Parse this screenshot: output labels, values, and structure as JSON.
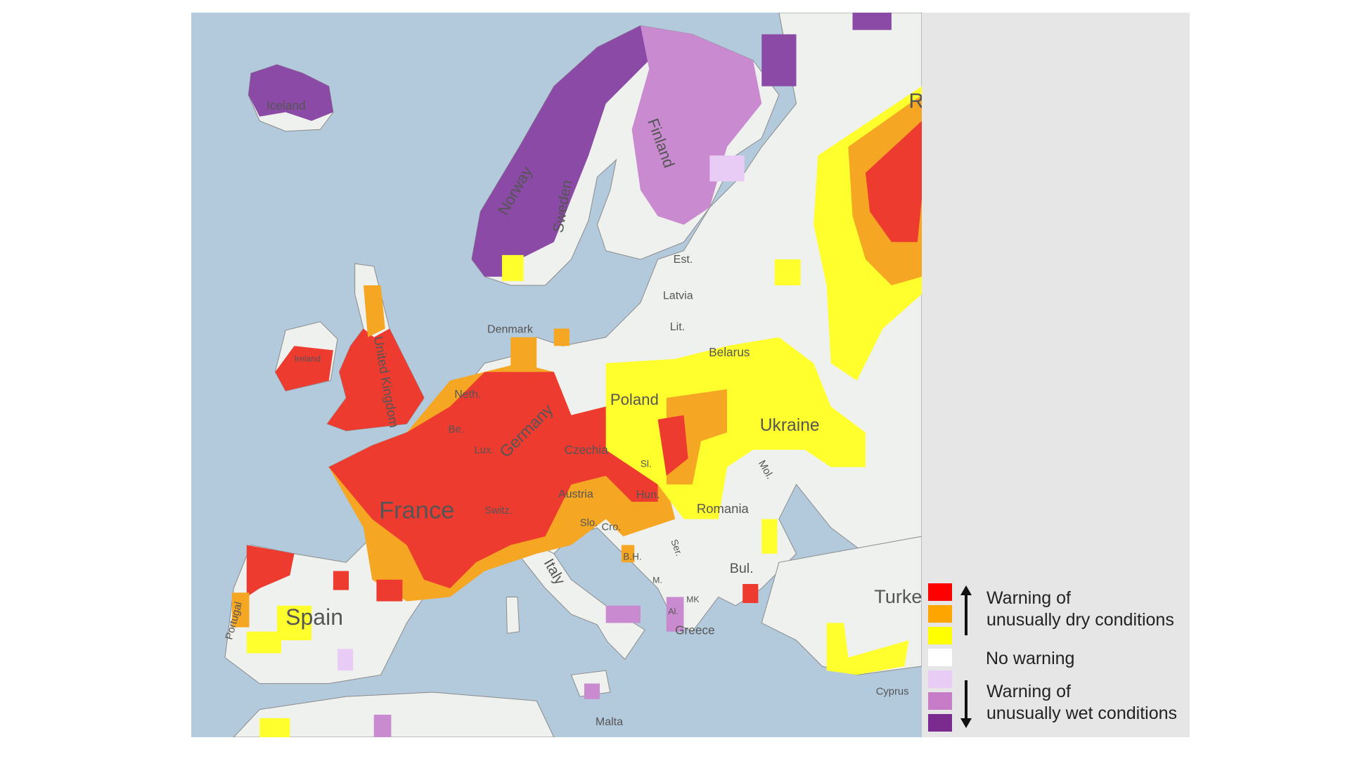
{
  "legend": {
    "items": [
      {
        "color": "#ff0000"
      },
      {
        "color": "#ffa500"
      },
      {
        "color": "#ffff00"
      },
      {
        "color": "#ffffff"
      },
      {
        "color": "#e8ccf5"
      },
      {
        "color": "#c77cc7"
      },
      {
        "color": "#7b2a8e"
      }
    ],
    "dry_line1": "Warning of",
    "dry_line2": "unusually dry conditions",
    "none": "No warning",
    "wet_line1": "Warning of",
    "wet_line2": "unusually wet conditions"
  },
  "map": {
    "labels": {
      "iceland": "Iceland",
      "norway": "Norway",
      "sweden": "Sweden",
      "finland": "Finland",
      "estonia": "Est.",
      "latvia": "Latvia",
      "lithuania": "Lit.",
      "belarus": "Belarus",
      "denmark": "Denmark",
      "ireland": "Ireland",
      "uk": "United Kingdom",
      "netherlands": "Neth.",
      "belgium": "Be.",
      "luxembourg": "Lux.",
      "germany": "Germany",
      "poland": "Poland",
      "ukraine": "Ukraine",
      "czechia": "Czechia",
      "slovakia": "Sl.",
      "austria": "Austria",
      "hungary": "Hun.",
      "moldova": "Mol.",
      "romania": "Romania",
      "france": "France",
      "switzerland": "Switz.",
      "slovenia": "Slo.",
      "croatia": "Cro.",
      "bosnia": "B.H.",
      "serbia": "Ser.",
      "bulgaria": "Bul.",
      "montenegro": "M.",
      "macedonia": "MK",
      "albania": "Al.",
      "greece": "Greece",
      "italy": "Italy",
      "spain": "Spain",
      "portugal": "Portugal",
      "turkey": "Turke",
      "cyprus": "Cyprus",
      "malta": "Malta",
      "russia": "R"
    }
  }
}
